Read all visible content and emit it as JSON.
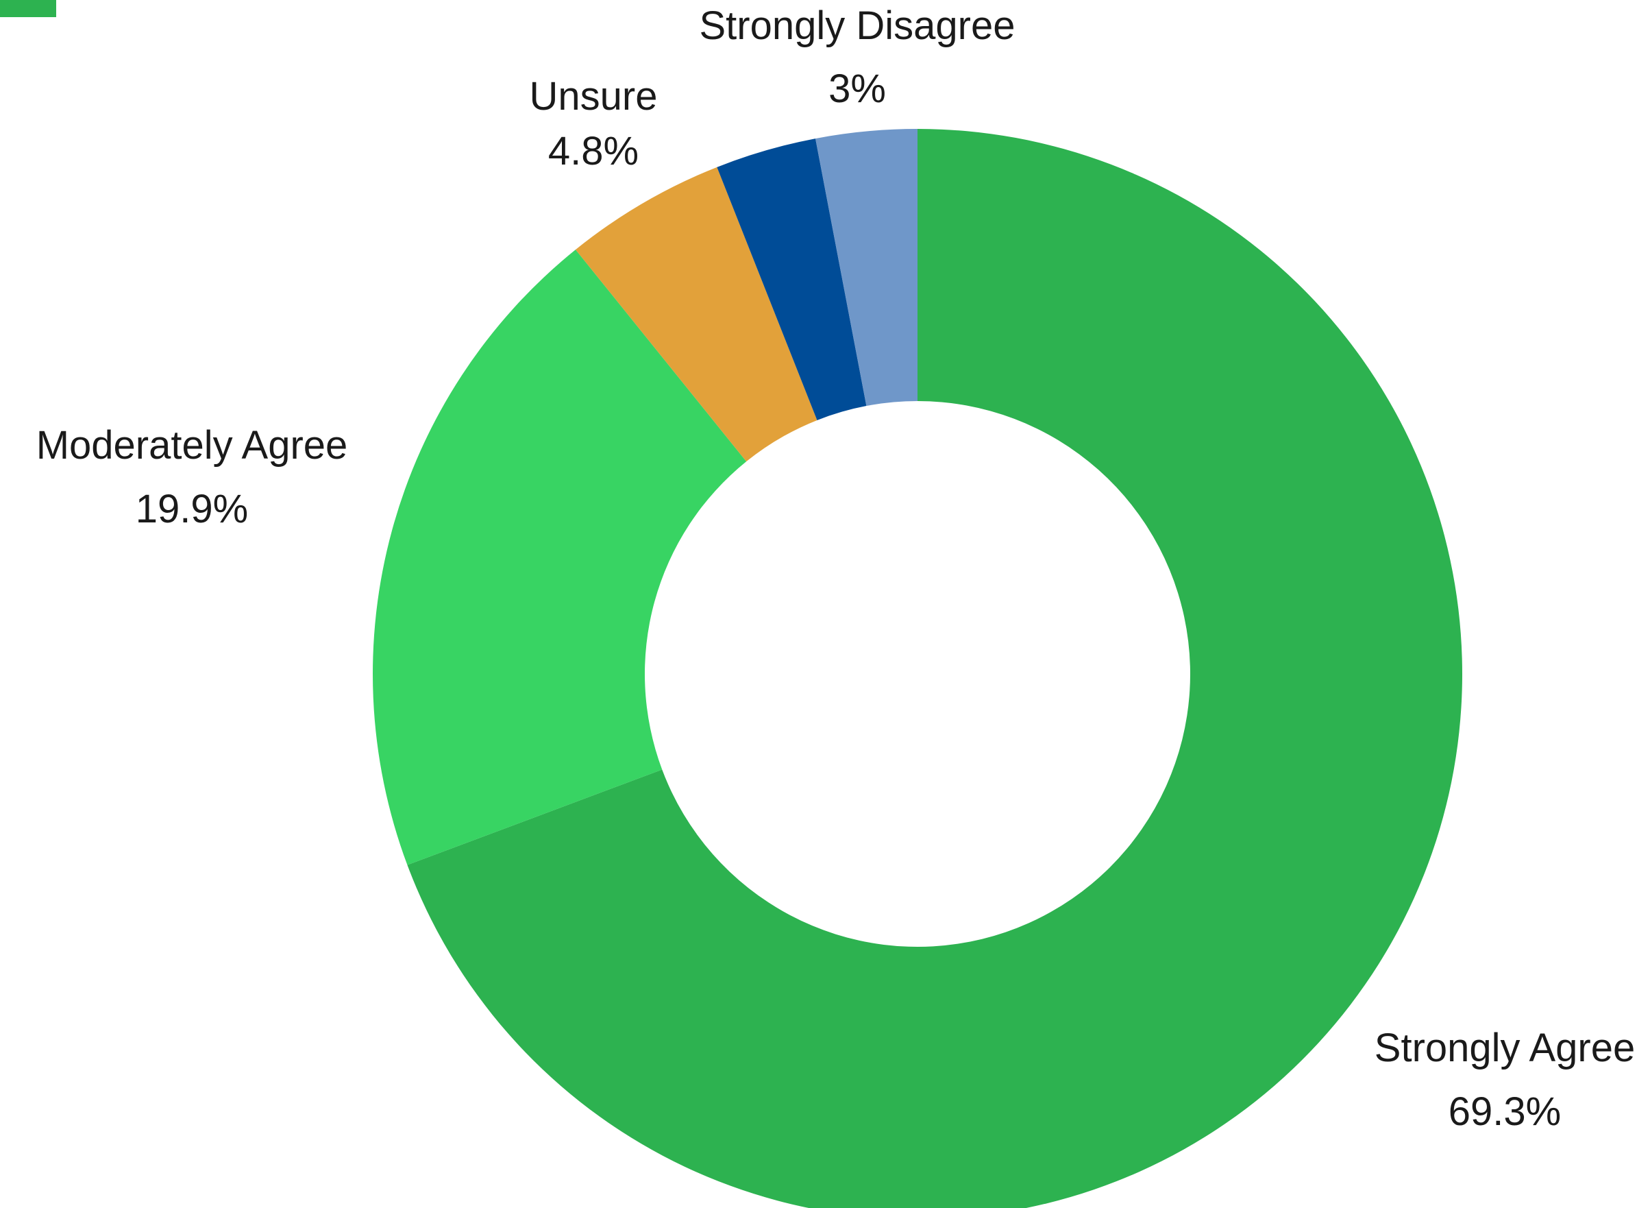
{
  "chart_data": {
    "type": "pie",
    "variant": "donut",
    "title": "",
    "slices": [
      {
        "label": "Strongly Agree",
        "value": 69.3,
        "display": "69.3%",
        "color": "#2DB250"
      },
      {
        "label": "Moderately Agree",
        "value": 19.9,
        "display": "19.9%",
        "color": "#38D463"
      },
      {
        "label": "Unsure",
        "value": 4.8,
        "display": "4.8%",
        "color": "#E2A13A"
      },
      {
        "label": "Strongly Disagree",
        "value": 3.0,
        "display": "3%",
        "color": "#6F97C9"
      }
    ],
    "unlabeled_slices": [
      {
        "value": 3.0,
        "color": "#004C97"
      }
    ],
    "legend": {
      "visible": false,
      "marker_color": "#2DB250"
    }
  }
}
